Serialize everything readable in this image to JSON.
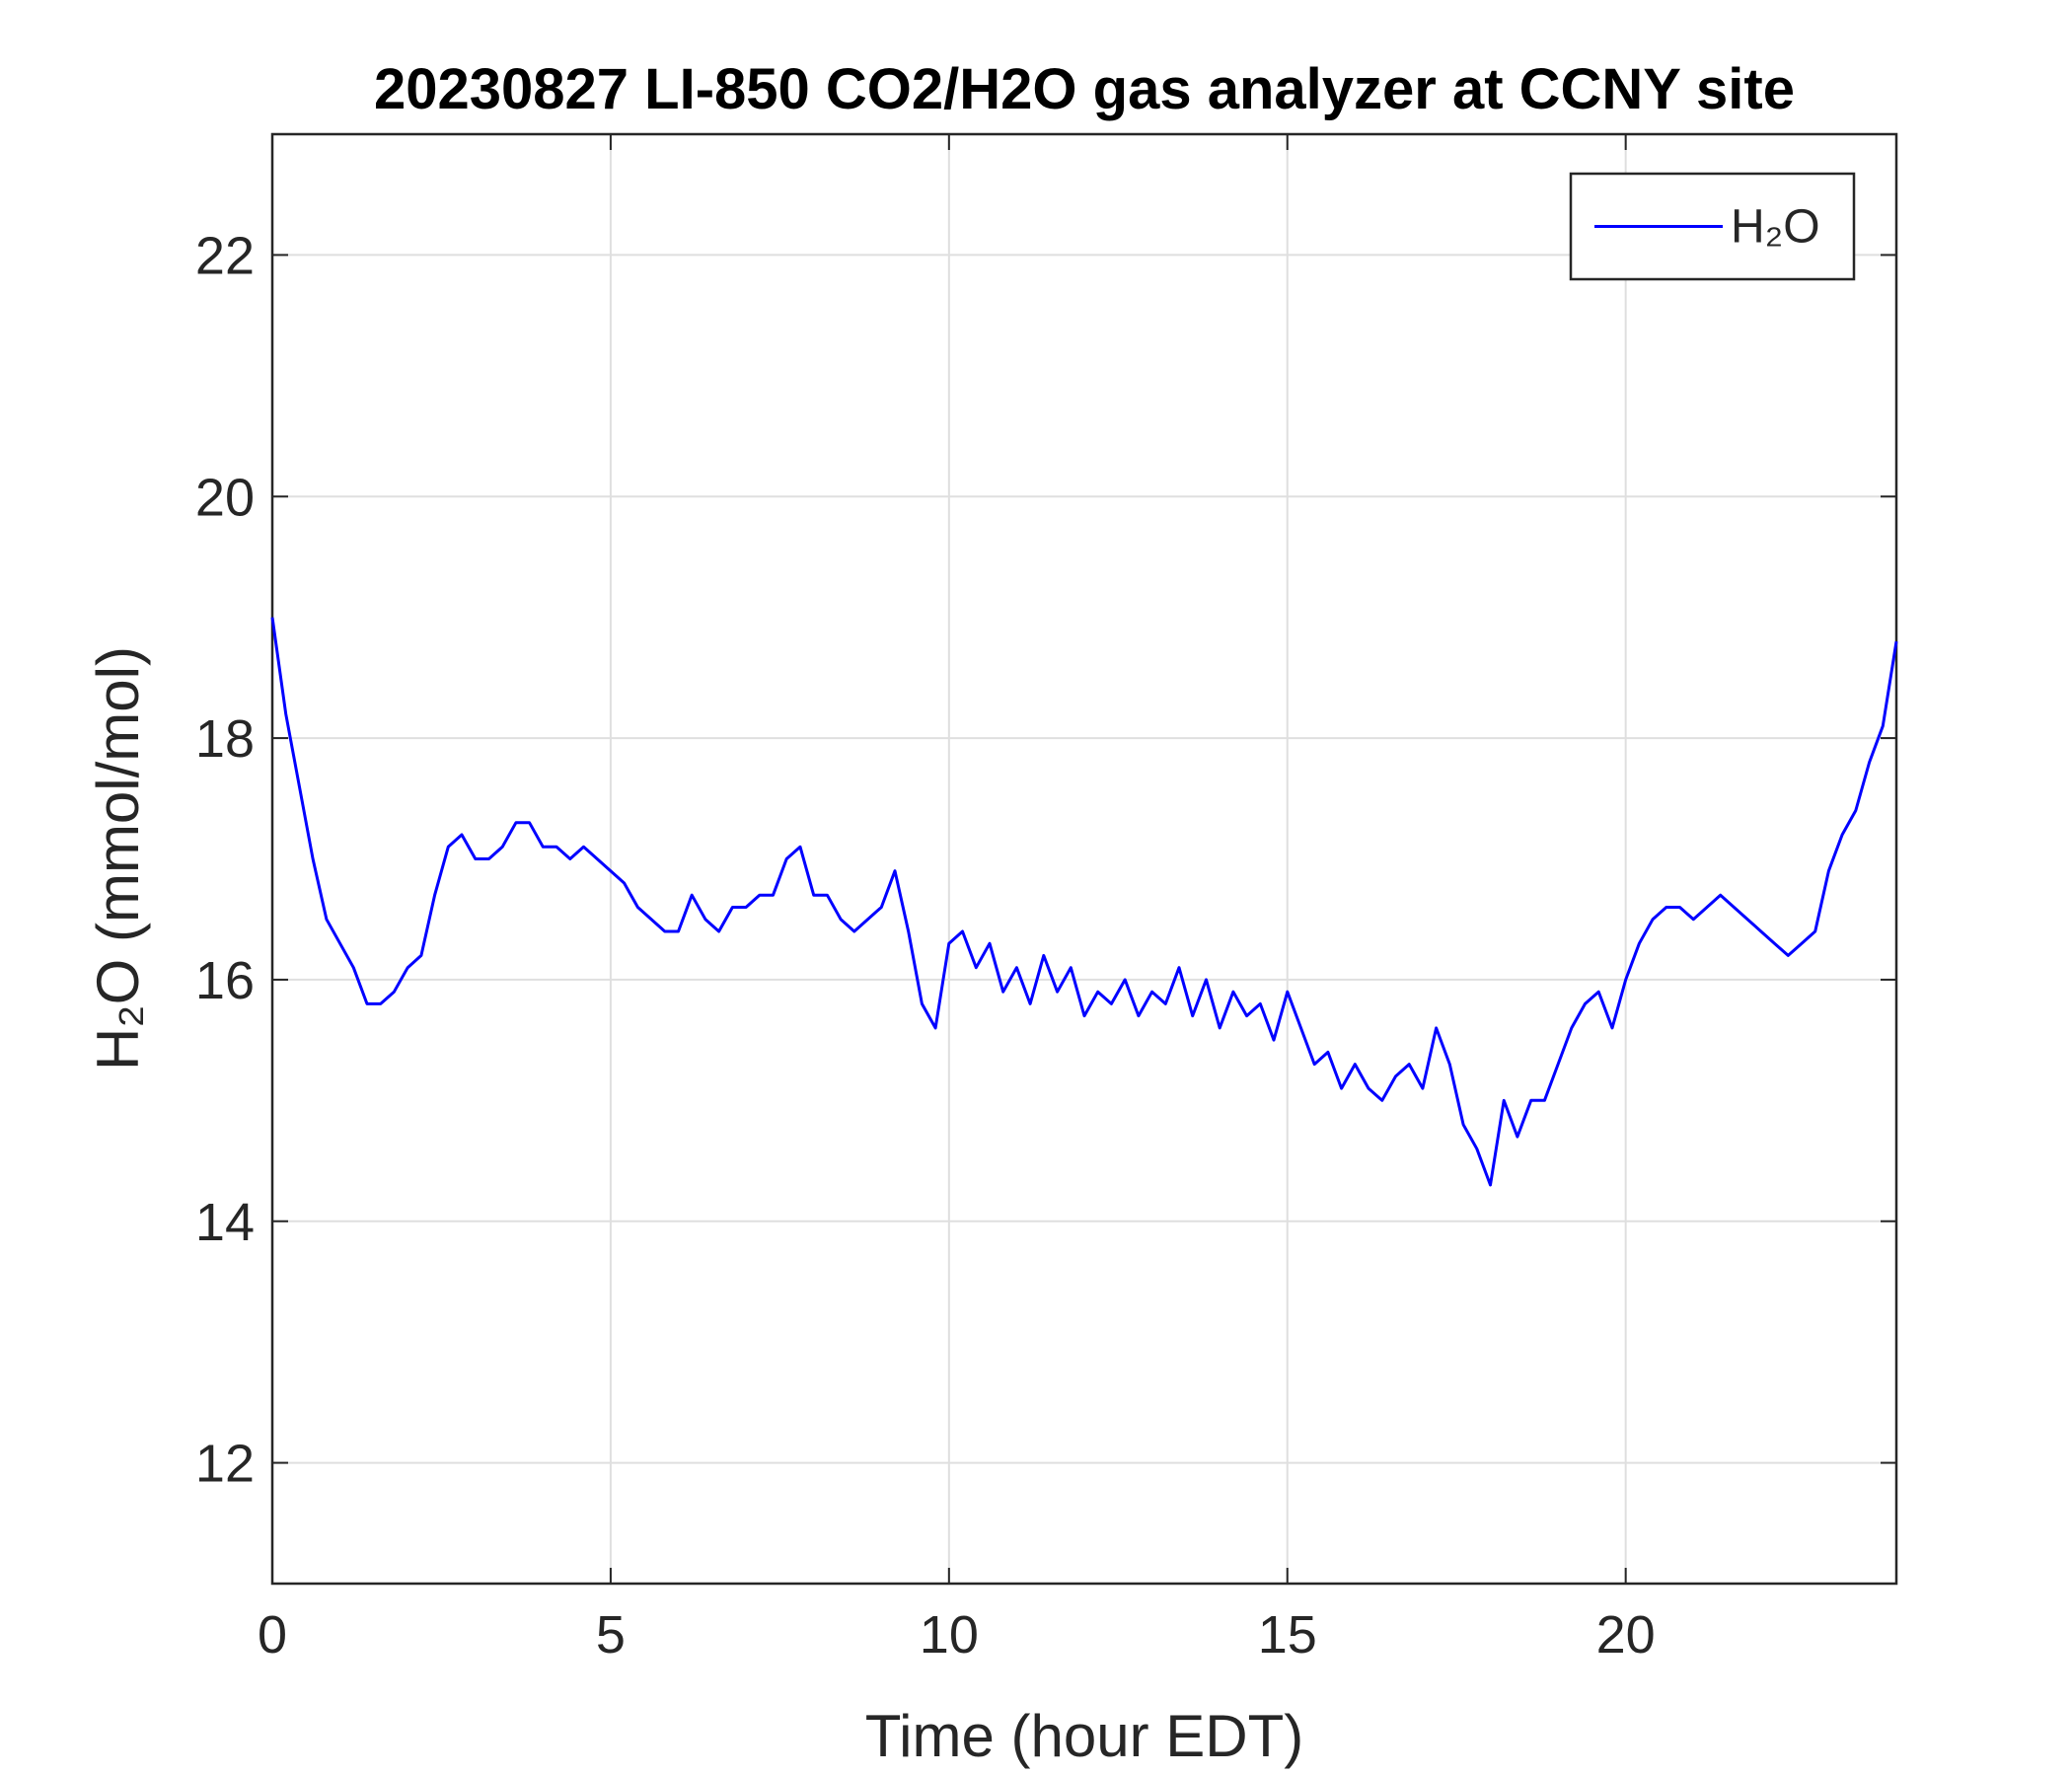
{
  "chart_data": {
    "type": "line",
    "title": "20230827 LI-850 CO2/H2O gas analyzer at CCNY site",
    "xlabel": "Time (hour EDT)",
    "ylabel": "H₂O (mmol/mol)",
    "x": [
      0,
      0.2,
      0.4,
      0.6,
      0.8,
      1,
      1.2,
      1.4,
      1.6,
      1.8,
      2,
      2.2,
      2.4,
      2.6,
      2.8,
      3,
      3.2,
      3.4,
      3.6,
      3.8,
      4,
      4.2,
      4.4,
      4.6,
      4.8,
      5,
      5.2,
      5.4,
      5.6,
      5.8,
      6,
      6.2,
      6.4,
      6.6,
      6.8,
      7,
      7.2,
      7.4,
      7.6,
      7.8,
      8,
      8.2,
      8.4,
      8.6,
      8.8,
      9,
      9.2,
      9.4,
      9.6,
      9.8,
      10,
      10.2,
      10.4,
      10.6,
      10.8,
      11,
      11.2,
      11.4,
      11.6,
      11.8,
      12,
      12.2,
      12.4,
      12.6,
      12.8,
      13,
      13.2,
      13.4,
      13.6,
      13.8,
      14,
      14.2,
      14.4,
      14.6,
      14.8,
      15,
      15.2,
      15.4,
      15.6,
      15.8,
      16,
      16.2,
      16.4,
      16.6,
      16.8,
      17,
      17.2,
      17.4,
      17.6,
      17.8,
      18,
      18.2,
      18.4,
      18.6,
      18.8,
      19,
      19.2,
      19.4,
      19.6,
      19.8,
      20,
      20.2,
      20.4,
      20.6,
      20.8,
      21,
      21.2,
      21.4,
      21.6,
      21.8,
      22,
      22.2,
      22.4,
      22.6,
      22.8,
      23,
      23.2,
      23.4,
      23.6,
      23.8,
      24
    ],
    "series": [
      {
        "name": "H₂O",
        "color": "#0000ff",
        "values": [
          19.0,
          18.2,
          17.6,
          17.0,
          16.5,
          16.3,
          16.1,
          15.8,
          15.8,
          15.9,
          16.1,
          16.2,
          16.7,
          17.1,
          17.2,
          17.0,
          17.0,
          17.1,
          17.3,
          17.3,
          17.1,
          17.1,
          17.0,
          17.1,
          17.0,
          16.9,
          16.8,
          16.6,
          16.5,
          16.4,
          16.4,
          16.7,
          16.5,
          16.4,
          16.6,
          16.6,
          16.7,
          16.7,
          17.0,
          17.1,
          16.7,
          16.7,
          16.5,
          16.4,
          16.5,
          16.6,
          16.9,
          16.4,
          15.8,
          15.6,
          16.3,
          16.4,
          16.1,
          16.3,
          15.9,
          16.1,
          15.8,
          16.2,
          15.9,
          16.1,
          15.7,
          15.9,
          15.8,
          16.0,
          15.7,
          15.9,
          15.8,
          16.1,
          15.7,
          16.0,
          15.6,
          15.9,
          15.7,
          15.8,
          15.5,
          15.9,
          15.6,
          15.3,
          15.4,
          15.1,
          15.3,
          15.1,
          15.0,
          15.2,
          15.3,
          15.1,
          15.6,
          15.3,
          14.8,
          14.6,
          14.3,
          15.0,
          14.7,
          15.0,
          15.0,
          15.3,
          15.6,
          15.8,
          15.9,
          15.6,
          16.0,
          16.3,
          16.5,
          16.6,
          16.6,
          16.5,
          16.6,
          16.7,
          16.6,
          16.5,
          16.4,
          16.3,
          16.2,
          16.3,
          16.4,
          16.9,
          17.2,
          17.4,
          17.8,
          18.1,
          18.8
        ]
      }
    ],
    "xlim": [
      0,
      24
    ],
    "ylim": [
      11,
      23
    ],
    "xticks": [
      0,
      5,
      10,
      15,
      20
    ],
    "yticks": [
      12,
      14,
      16,
      18,
      20,
      22
    ],
    "grid": true,
    "legend": "northeast"
  }
}
